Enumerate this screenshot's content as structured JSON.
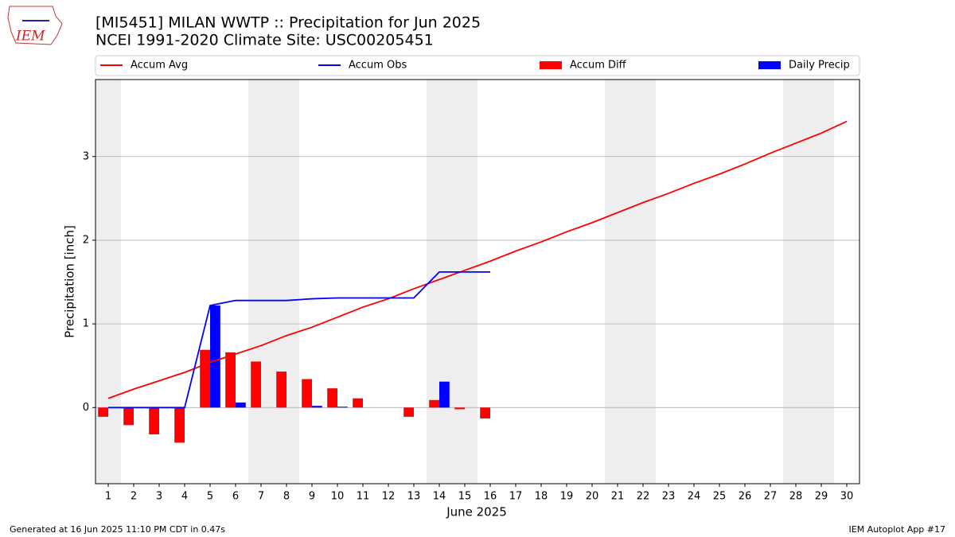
{
  "chart_data": {
    "type": "bar-line",
    "title": "[MI5451] MILAN WWTP :: Precipitation for Jun 2025",
    "subtitle": "NCEI 1991-2020 Climate Site: USC00205451",
    "logo_text": "IEM",
    "x_label": "June 2025",
    "y_label": "Precipitation [inch]",
    "footer_left": "Generated at 16 Jun 2025 11:10 PM CDT in 0.47s",
    "footer_right": "IEM Autoplot App #17",
    "x": [
      1,
      2,
      3,
      4,
      5,
      6,
      7,
      8,
      9,
      10,
      11,
      12,
      13,
      14,
      15,
      16,
      17,
      18,
      19,
      20,
      21,
      22,
      23,
      24,
      25,
      26,
      27,
      28,
      29,
      30
    ],
    "xlim": [
      0.5,
      30.5
    ],
    "xticks": [
      1,
      2,
      3,
      4,
      5,
      6,
      7,
      8,
      9,
      10,
      11,
      12,
      13,
      14,
      15,
      16,
      17,
      18,
      19,
      20,
      21,
      22,
      23,
      24,
      25,
      26,
      27,
      28,
      29,
      30
    ],
    "ylim": [
      -0.91,
      3.92
    ],
    "yticks": [
      0,
      1,
      2,
      3
    ],
    "grid": true,
    "shaded_spans": [
      [
        0.5,
        1.5
      ],
      [
        6.5,
        8.5
      ],
      [
        13.5,
        15.5
      ],
      [
        20.5,
        22.5
      ],
      [
        27.5,
        29.5
      ]
    ],
    "shade_color": "#eeeeee",
    "series": [
      {
        "name": "Accum Avg",
        "kind": "line",
        "color": "#ff0000",
        "values": [
          0.11,
          0.22,
          0.32,
          0.42,
          0.54,
          0.64,
          0.74,
          0.86,
          0.96,
          1.08,
          1.2,
          1.3,
          1.42,
          1.53,
          1.64,
          1.75,
          1.87,
          1.98,
          2.1,
          2.21,
          2.33,
          2.45,
          2.56,
          2.68,
          2.79,
          2.91,
          3.04,
          3.16,
          3.28,
          3.42
        ]
      },
      {
        "name": "Accum Obs",
        "kind": "line",
        "color": "#0000ff",
        "values": [
          0,
          0,
          0,
          0,
          1.22,
          1.28,
          1.28,
          1.28,
          1.3,
          1.31,
          1.31,
          1.31,
          1.31,
          1.62,
          1.62,
          1.62,
          null,
          null,
          null,
          null,
          null,
          null,
          null,
          null,
          null,
          null,
          null,
          null,
          null,
          null
        ]
      },
      {
        "name": "Accum Diff",
        "kind": "bar",
        "color": "#ff0000",
        "values": [
          -0.11,
          -0.21,
          -0.32,
          -0.42,
          0.69,
          0.66,
          0.55,
          0.43,
          0.34,
          0.23,
          0.11,
          0,
          -0.11,
          0.09,
          -0.02,
          -0.13,
          null,
          null,
          null,
          null,
          null,
          null,
          null,
          null,
          null,
          null,
          null,
          null,
          null,
          null
        ]
      },
      {
        "name": "Daily Precip",
        "kind": "bar",
        "color": "#0000ff",
        "values": [
          0,
          0,
          0,
          0,
          1.22,
          0.06,
          0,
          0,
          0.02,
          0.01,
          0,
          0,
          0,
          0.31,
          0,
          0,
          null,
          null,
          null,
          null,
          null,
          null,
          null,
          null,
          null,
          null,
          null,
          null,
          null,
          null
        ]
      }
    ]
  }
}
